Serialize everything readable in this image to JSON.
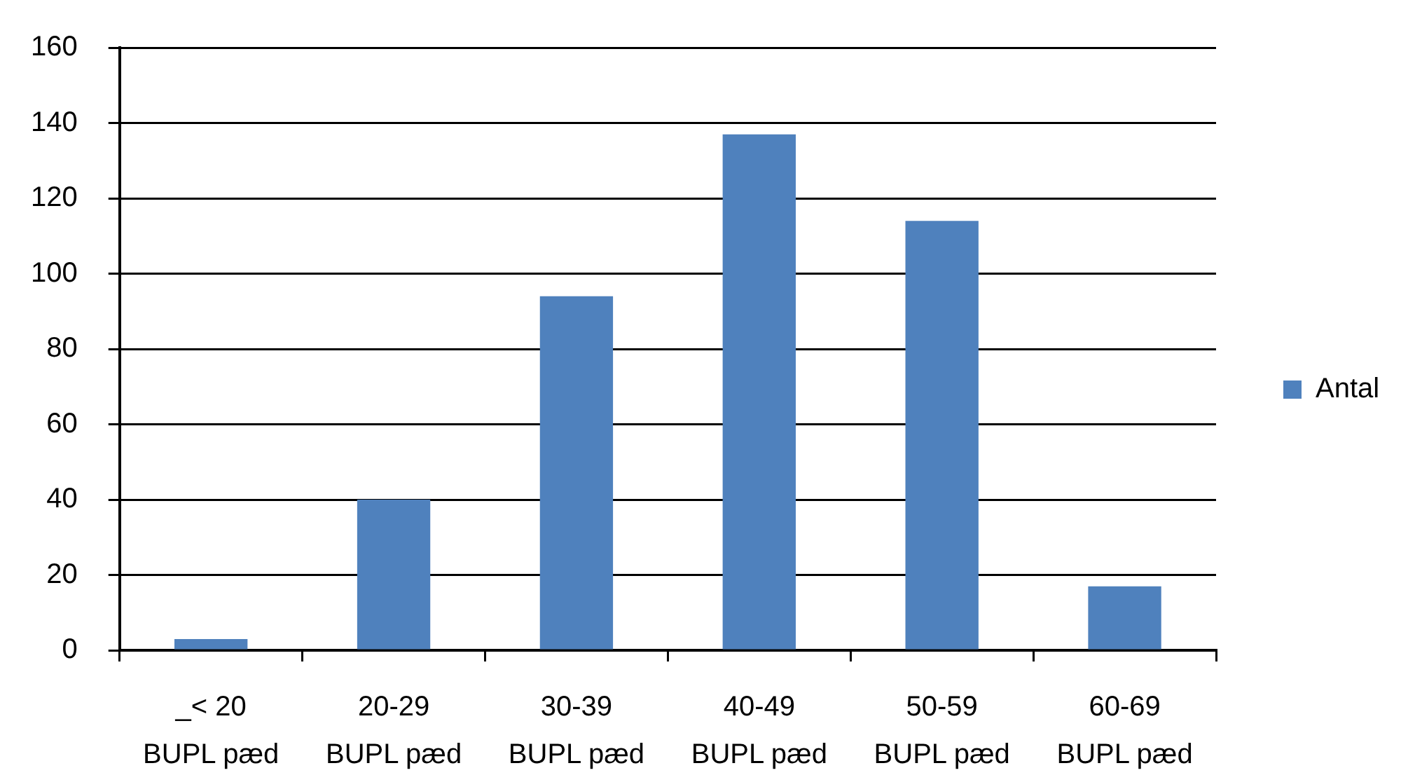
{
  "chart_data": {
    "type": "bar",
    "categories": [
      "_< 20\nBUPL pæd",
      "20-29\nBUPL pæd",
      "30-39\nBUPL pæd",
      "40-49\nBUPL pæd",
      "50-59\nBUPL pæd",
      "60-69\nBUPL pæd"
    ],
    "series": [
      {
        "name": "Antal",
        "color": "#4f81bd",
        "values": [
          3,
          40,
          94,
          137,
          114,
          17
        ]
      }
    ],
    "ylim": [
      0,
      160
    ],
    "yticks": [
      0,
      20,
      40,
      60,
      80,
      100,
      120,
      140,
      160
    ],
    "grid": "y",
    "legend": "right"
  }
}
